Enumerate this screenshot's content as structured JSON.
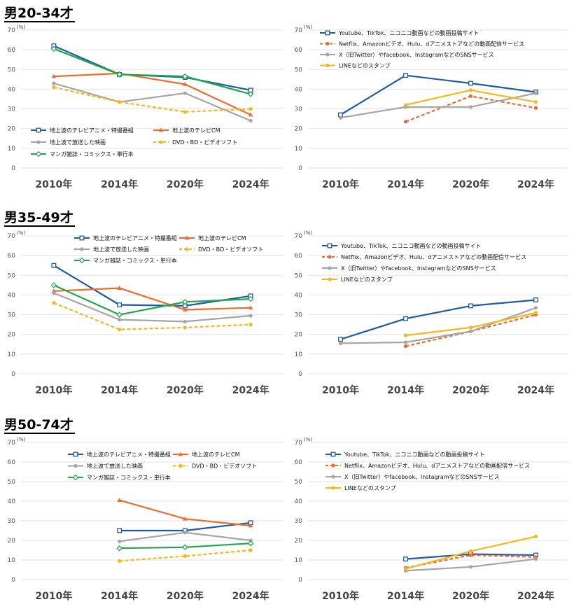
{
  "sections": [
    {
      "title": "男20-34才"
    },
    {
      "title": "男35-49才"
    },
    {
      "title": "男50-74才"
    }
  ],
  "chart_data": [
    {
      "type": "line",
      "group": "男20-34才",
      "unit": "(%)",
      "ylim": [
        0,
        70
      ],
      "yticks": [
        0,
        10,
        20,
        30,
        40,
        50,
        60,
        70
      ],
      "categories": [
        "2010年",
        "2014年",
        "2020年",
        "2024年"
      ],
      "series": [
        {
          "name": "地上波のテレビアニメ・特撮番組",
          "color": "#1f5aa8",
          "dash": false,
          "marker": "square",
          "values": [
            62,
            47.5,
            46,
            39.5
          ]
        },
        {
          "name": "地上波のテレビCM",
          "color": "#ec6b2d",
          "dash": false,
          "marker": "triangle",
          "values": [
            46.5,
            48,
            42.5,
            27
          ]
        },
        {
          "name": "地上波で放送した映画",
          "color": "#a5a5a5",
          "dash": false,
          "marker": "circle",
          "values": [
            43,
            33.5,
            38,
            24
          ]
        },
        {
          "name": "DVD・BD・ビデオソフト",
          "color": "#f5b81a",
          "dash": true,
          "marker": "circle",
          "values": [
            41,
            33.5,
            28.5,
            30
          ]
        },
        {
          "name": "マンガ雑誌・コミックス・単行本",
          "color": "#1ea64a",
          "dash": false,
          "marker": "diamond",
          "values": [
            60.5,
            47.5,
            46.5,
            37.5
          ]
        }
      ]
    },
    {
      "type": "line",
      "group": "男20-34才",
      "unit": "(%)",
      "ylim": [
        0,
        70
      ],
      "yticks": [
        0,
        10,
        20,
        30,
        40,
        50,
        60,
        70
      ],
      "categories": [
        "2010年",
        "2014年",
        "2020年",
        "2024年"
      ],
      "series": [
        {
          "name": "Youtube、TikTok、ニコニコ動画などの動画投稿サイト",
          "color": "#1f5aa8",
          "dash": false,
          "marker": "square",
          "values": [
            27,
            47,
            43,
            38.5
          ]
        },
        {
          "name": "Netflix、Amazonビデオ、Hulu、dアニメストアなどの動画配信サービス",
          "color": "#ec6b2d",
          "dash": true,
          "marker": "circle",
          "values": [
            null,
            23.5,
            36.5,
            30.5
          ]
        },
        {
          "name": "X（旧Twitter）やfacebook、InstagramなどのSNSサービス",
          "color": "#a5a5a5",
          "dash": false,
          "marker": "circle",
          "values": [
            25.5,
            31,
            31,
            38
          ]
        },
        {
          "name": "LINEなどのスタンプ",
          "color": "#f5b81a",
          "dash": false,
          "marker": "circle",
          "values": [
            null,
            32,
            39.5,
            33.5
          ]
        }
      ]
    },
    {
      "type": "line",
      "group": "男35-49才",
      "unit": "(%)",
      "ylim": [
        0,
        70
      ],
      "yticks": [
        0,
        10,
        20,
        30,
        40,
        50,
        60,
        70
      ],
      "categories": [
        "2010年",
        "2014年",
        "2020年",
        "2024年"
      ],
      "series": [
        {
          "name": "地上波のテレビアニメ・特撮番組",
          "color": "#1f5aa8",
          "dash": false,
          "marker": "square",
          "values": [
            55,
            35,
            34.5,
            39.5
          ]
        },
        {
          "name": "地上波のテレビCM",
          "color": "#ec6b2d",
          "dash": false,
          "marker": "triangle",
          "values": [
            42,
            43.5,
            32.5,
            33.5
          ]
        },
        {
          "name": "地上波で放送した映画",
          "color": "#a5a5a5",
          "dash": false,
          "marker": "circle",
          "values": [
            41,
            27.5,
            26.5,
            29.5
          ]
        },
        {
          "name": "DVD・BD・ビデオソフト",
          "color": "#f5b81a",
          "dash": true,
          "marker": "circle",
          "values": [
            36,
            22.5,
            23.5,
            25
          ]
        },
        {
          "name": "マンガ雑誌・コミックス・単行本",
          "color": "#1ea64a",
          "dash": false,
          "marker": "diamond",
          "values": [
            45,
            30,
            36.5,
            38
          ]
        }
      ]
    },
    {
      "type": "line",
      "group": "男35-49才",
      "unit": "(%)",
      "ylim": [
        0,
        70
      ],
      "yticks": [
        0,
        10,
        20,
        30,
        40,
        50,
        60,
        70
      ],
      "categories": [
        "2010年",
        "2014年",
        "2020年",
        "2024年"
      ],
      "series": [
        {
          "name": "Youtube、TikTok、ニコニコ動画などの動画投稿サイト",
          "color": "#1f5aa8",
          "dash": false,
          "marker": "square",
          "values": [
            17.5,
            28,
            34.5,
            37.5
          ]
        },
        {
          "name": "Netflix、Amazonビデオ、Hulu、dアニメストアなどの動画配信サービス",
          "color": "#ec6b2d",
          "dash": true,
          "marker": "circle",
          "values": [
            null,
            14,
            21.5,
            30
          ]
        },
        {
          "name": "X（旧Twitter）やfacebook、InstagramなどのSNSサービス",
          "color": "#a5a5a5",
          "dash": false,
          "marker": "circle",
          "values": [
            15.5,
            16,
            21.5,
            33.5
          ]
        },
        {
          "name": "LINEなどのスタンプ",
          "color": "#f5b81a",
          "dash": false,
          "marker": "circle",
          "values": [
            null,
            19.5,
            23.5,
            31
          ]
        }
      ]
    },
    {
      "type": "line",
      "group": "男50-74才",
      "unit": "(%)",
      "ylim": [
        0,
        70
      ],
      "yticks": [
        0,
        10,
        20,
        30,
        40,
        50,
        60,
        70
      ],
      "categories": [
        "2010年",
        "2014年",
        "2020年",
        "2024年"
      ],
      "series": [
        {
          "name": "地上波のテレビアニメ・特撮番組",
          "color": "#1f5aa8",
          "dash": false,
          "marker": "square",
          "values": [
            null,
            25,
            25,
            29
          ]
        },
        {
          "name": "地上波のテレビCM",
          "color": "#ec6b2d",
          "dash": false,
          "marker": "triangle",
          "values": [
            null,
            40.5,
            31,
            27.5
          ]
        },
        {
          "name": "地上波で放送した映画",
          "color": "#a5a5a5",
          "dash": false,
          "marker": "circle",
          "values": [
            null,
            19.5,
            24,
            20
          ]
        },
        {
          "name": "DVD・BD・ビデオソフト",
          "color": "#f5b81a",
          "dash": true,
          "marker": "circle",
          "values": [
            null,
            9.5,
            12,
            15
          ]
        },
        {
          "name": "マンガ雑誌・コミックス・単行本",
          "color": "#1ea64a",
          "dash": false,
          "marker": "diamond",
          "values": [
            null,
            16,
            16.5,
            18.5
          ]
        }
      ]
    },
    {
      "type": "line",
      "group": "男50-74才",
      "unit": "(%)",
      "ylim": [
        0,
        70
      ],
      "yticks": [
        0,
        10,
        20,
        30,
        40,
        50,
        60,
        70
      ],
      "categories": [
        "2010年",
        "2014年",
        "2020年",
        "2024年"
      ],
      "series": [
        {
          "name": "Youtube、TikTok、ニコニコ動画などの動画投稿サイト",
          "color": "#1f5aa8",
          "dash": false,
          "marker": "square",
          "values": [
            null,
            10.5,
            13,
            12.5
          ]
        },
        {
          "name": "Netflix、Amazonビデオ、Hulu、dアニメストアなどの動画配信サービス",
          "color": "#ec6b2d",
          "dash": true,
          "marker": "circle",
          "values": [
            null,
            6,
            12.5,
            11.5
          ]
        },
        {
          "name": "X（旧Twitter）やfacebook、InstagramなどのSNSサービス",
          "color": "#a5a5a5",
          "dash": false,
          "marker": "circle",
          "values": [
            null,
            4.5,
            6.5,
            10.5
          ]
        },
        {
          "name": "LINEなどのスタンプ",
          "color": "#f5b81a",
          "dash": false,
          "marker": "circle",
          "values": [
            null,
            5.5,
            14.5,
            22
          ]
        }
      ]
    }
  ]
}
